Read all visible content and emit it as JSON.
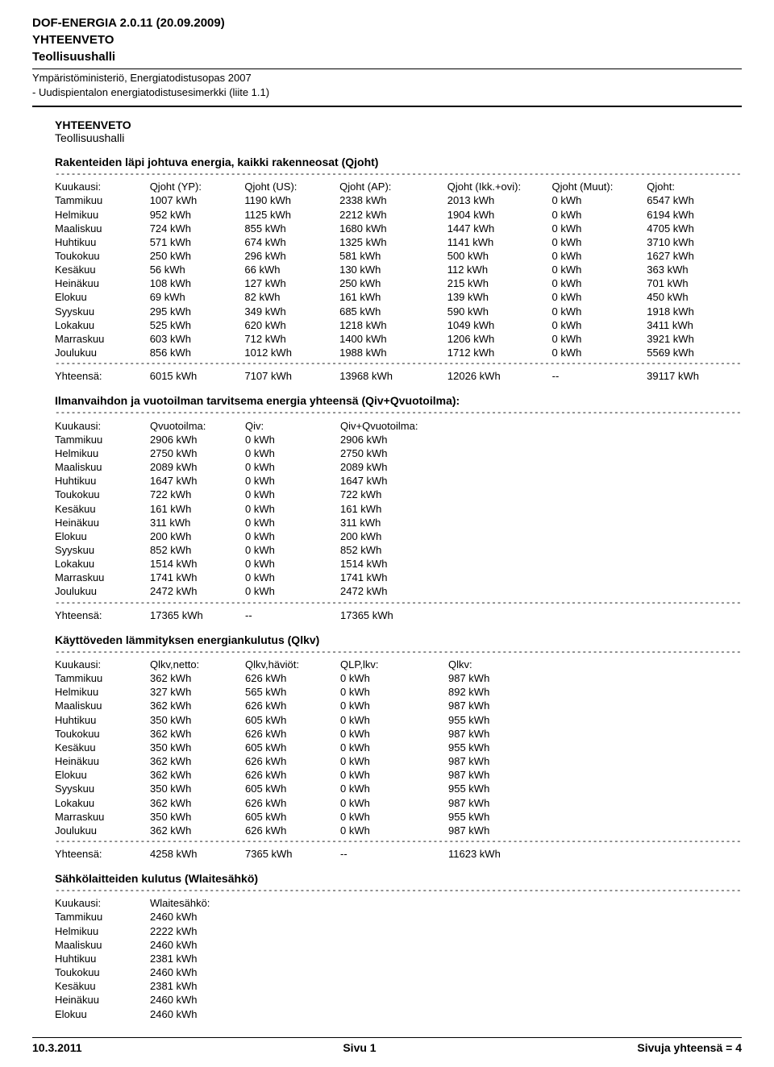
{
  "header": {
    "app_title": "DOF-ENERGIA 2.0.11 (20.09.2009)",
    "doc_type": "YHTEENVETO",
    "doc_subject": "Teollisuushalli",
    "meta1": "Ympäristöministeriö, Energiatodistusopas 2007",
    "meta2": "- Uudispientalon energiatodistusesimerkki (liite 1.1)"
  },
  "summary": {
    "title": "YHTEENVETO",
    "sub": "Teollisuushalli"
  },
  "qjoht": {
    "heading": "Rakenteiden läpi johtuva energia, kaikki rakenneosat (Qjoht)",
    "headers": [
      "Kuukausi:",
      "Qjoht (YP):",
      "Qjoht (US):",
      "Qjoht (AP):",
      "Qjoht (Ikk.+ovi):",
      "Qjoht (Muut):",
      "Qjoht:"
    ],
    "rows": [
      [
        "Tammikuu",
        "1007 kWh",
        "1190 kWh",
        "2338 kWh",
        "2013 kWh",
        "0 kWh",
        "6547 kWh"
      ],
      [
        "Helmikuu",
        "952 kWh",
        "1125 kWh",
        "2212 kWh",
        "1904 kWh",
        "0 kWh",
        "6194 kWh"
      ],
      [
        "Maaliskuu",
        "724 kWh",
        "855 kWh",
        "1680 kWh",
        "1447 kWh",
        "0 kWh",
        "4705 kWh"
      ],
      [
        "Huhtikuu",
        "571 kWh",
        "674 kWh",
        "1325 kWh",
        "1141 kWh",
        "0 kWh",
        "3710 kWh"
      ],
      [
        "Toukokuu",
        "250 kWh",
        "296 kWh",
        "581 kWh",
        "500 kWh",
        "0 kWh",
        "1627 kWh"
      ],
      [
        "Kesäkuu",
        "56 kWh",
        "66 kWh",
        "130 kWh",
        "112 kWh",
        "0 kWh",
        "363 kWh"
      ],
      [
        "Heinäkuu",
        "108 kWh",
        "127 kWh",
        "250 kWh",
        "215 kWh",
        "0 kWh",
        "701 kWh"
      ],
      [
        "Elokuu",
        "69 kWh",
        "82 kWh",
        "161 kWh",
        "139 kWh",
        "0 kWh",
        "450 kWh"
      ],
      [
        "Syyskuu",
        "295 kWh",
        "349 kWh",
        "685 kWh",
        "590 kWh",
        "0 kWh",
        "1918 kWh"
      ],
      [
        "Lokakuu",
        "525 kWh",
        "620 kWh",
        "1218 kWh",
        "1049 kWh",
        "0 kWh",
        "3411 kWh"
      ],
      [
        "Marraskuu",
        "603 kWh",
        "712 kWh",
        "1400 kWh",
        "1206 kWh",
        "0 kWh",
        "3921 kWh"
      ],
      [
        "Joulukuu",
        "856 kWh",
        "1012 kWh",
        "1988 kWh",
        "1712 kWh",
        "0 kWh",
        "5569 kWh"
      ]
    ],
    "total": [
      "Yhteensä:",
      "6015 kWh",
      "7107 kWh",
      "13968 kWh",
      "12026 kWh",
      "--",
      "39117 kWh"
    ]
  },
  "qiv": {
    "heading": "Ilmanvaihdon ja vuotoilman tarvitsema energia yhteensä (Qiv+Qvuotoilma):",
    "headers": [
      "Kuukausi:",
      "Qvuotoilma:",
      "Qiv:",
      "Qiv+Qvuotoilma:"
    ],
    "rows": [
      [
        "Tammikuu",
        "2906 kWh",
        "0 kWh",
        "2906 kWh"
      ],
      [
        "Helmikuu",
        "2750 kWh",
        "0 kWh",
        "2750 kWh"
      ],
      [
        "Maaliskuu",
        "2089 kWh",
        "0 kWh",
        "2089 kWh"
      ],
      [
        "Huhtikuu",
        "1647 kWh",
        "0 kWh",
        "1647 kWh"
      ],
      [
        "Toukokuu",
        "722 kWh",
        "0 kWh",
        "722 kWh"
      ],
      [
        "Kesäkuu",
        "161 kWh",
        "0 kWh",
        "161 kWh"
      ],
      [
        "Heinäkuu",
        "311 kWh",
        "0 kWh",
        "311 kWh"
      ],
      [
        "Elokuu",
        "200 kWh",
        "0 kWh",
        "200 kWh"
      ],
      [
        "Syyskuu",
        "852 kWh",
        "0 kWh",
        "852 kWh"
      ],
      [
        "Lokakuu",
        "1514 kWh",
        "0 kWh",
        "1514 kWh"
      ],
      [
        "Marraskuu",
        "1741 kWh",
        "0 kWh",
        "1741 kWh"
      ],
      [
        "Joulukuu",
        "2472 kWh",
        "0 kWh",
        "2472 kWh"
      ]
    ],
    "total": [
      "Yhteensä:",
      "17365 kWh",
      "--",
      "17365 kWh"
    ]
  },
  "qlkv": {
    "heading": "Käyttöveden lämmityksen energiankulutus (Qlkv)",
    "headers": [
      "Kuukausi:",
      "Qlkv,netto:",
      "Qlkv,häviöt:",
      "QLP,lkv:",
      "Qlkv:"
    ],
    "rows": [
      [
        "Tammikuu",
        "362 kWh",
        "626 kWh",
        "0 kWh",
        "987 kWh"
      ],
      [
        "Helmikuu",
        "327 kWh",
        "565 kWh",
        "0 kWh",
        "892 kWh"
      ],
      [
        "Maaliskuu",
        "362 kWh",
        "626 kWh",
        "0 kWh",
        "987 kWh"
      ],
      [
        "Huhtikuu",
        "350 kWh",
        "605 kWh",
        "0 kWh",
        "955 kWh"
      ],
      [
        "Toukokuu",
        "362 kWh",
        "626 kWh",
        "0 kWh",
        "987 kWh"
      ],
      [
        "Kesäkuu",
        "350 kWh",
        "605 kWh",
        "0 kWh",
        "955 kWh"
      ],
      [
        "Heinäkuu",
        "362 kWh",
        "626 kWh",
        "0 kWh",
        "987 kWh"
      ],
      [
        "Elokuu",
        "362 kWh",
        "626 kWh",
        "0 kWh",
        "987 kWh"
      ],
      [
        "Syyskuu",
        "350 kWh",
        "605 kWh",
        "0 kWh",
        "955 kWh"
      ],
      [
        "Lokakuu",
        "362 kWh",
        "626 kWh",
        "0 kWh",
        "987 kWh"
      ],
      [
        "Marraskuu",
        "350 kWh",
        "605 kWh",
        "0 kWh",
        "955 kWh"
      ],
      [
        "Joulukuu",
        "362 kWh",
        "626 kWh",
        "0 kWh",
        "987 kWh"
      ]
    ],
    "total": [
      "Yhteensä:",
      "4258 kWh",
      "7365 kWh",
      "--",
      "11623 kWh"
    ]
  },
  "wlaite": {
    "heading": "Sähkölaitteiden kulutus (Wlaitesähkö)",
    "headers": [
      "Kuukausi:",
      "Wlaitesähkö:"
    ],
    "rows": [
      [
        "Tammikuu",
        "2460 kWh"
      ],
      [
        "Helmikuu",
        "2222 kWh"
      ],
      [
        "Maaliskuu",
        "2460 kWh"
      ],
      [
        "Huhtikuu",
        "2381 kWh"
      ],
      [
        "Toukokuu",
        "2460 kWh"
      ],
      [
        "Kesäkuu",
        "2381 kWh"
      ],
      [
        "Heinäkuu",
        "2460 kWh"
      ],
      [
        "Elokuu",
        "2460 kWh"
      ]
    ]
  },
  "footer": {
    "date": "10.3.2011",
    "page_current": "Sivu  1",
    "page_total": "Sivuja yhteensä = 4"
  },
  "dash": "------------------------------------------------------------------------------------------------------------------------------------------"
}
